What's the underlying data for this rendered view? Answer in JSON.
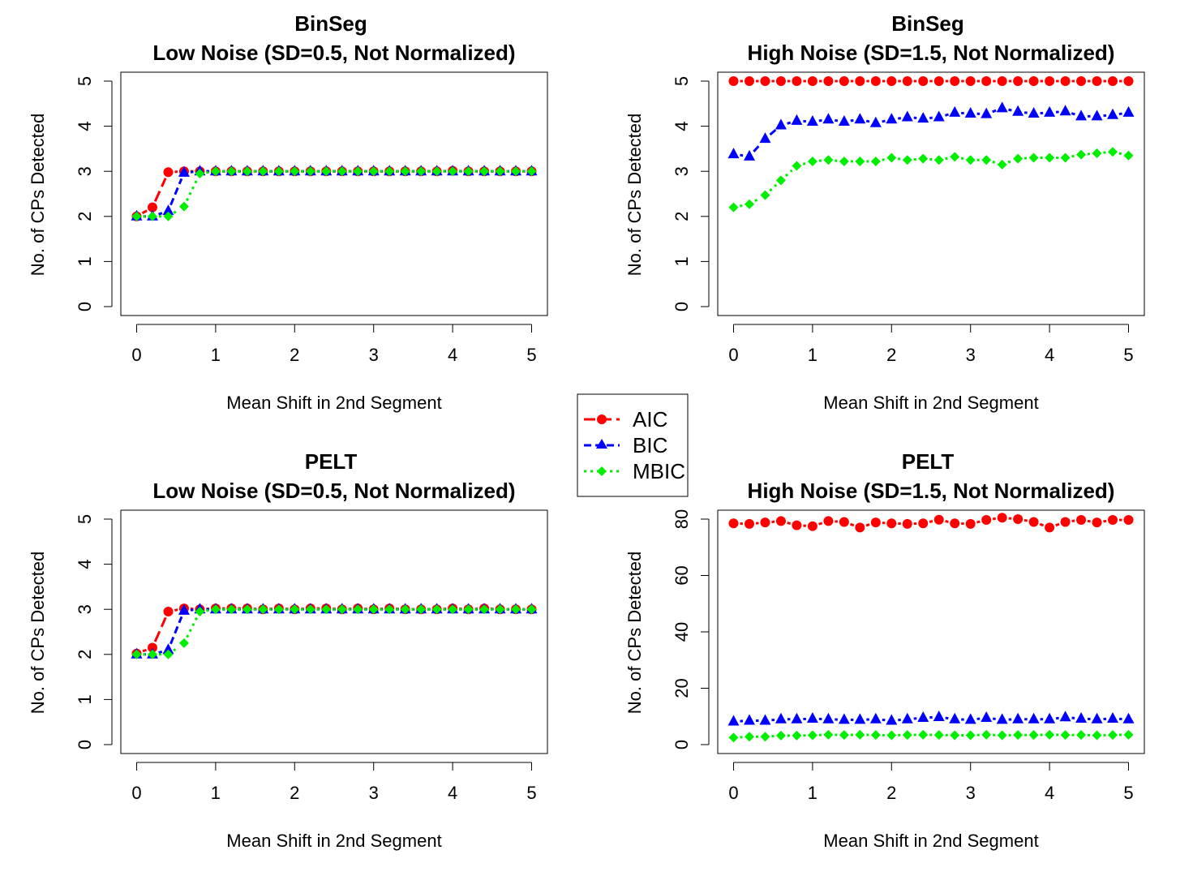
{
  "legend": {
    "entries": [
      {
        "label": "AIC",
        "color": "#ff0000",
        "marker": "circle",
        "dash": "long-dash"
      },
      {
        "label": "BIC",
        "color": "#0000ff",
        "marker": "triangle",
        "dash": "dash"
      },
      {
        "label": "MBIC",
        "color": "#00ee00",
        "marker": "diamond",
        "dash": "dotted"
      }
    ]
  },
  "chart_data": [
    {
      "type": "line",
      "title": "BinSeg",
      "subtitle": "Low Noise (SD=0.5, Not Normalized)",
      "xlabel": "Mean Shift in 2nd Segment",
      "ylabel": "No. of CPs Detected",
      "xlim": [
        0,
        5
      ],
      "ylim": [
        0,
        5
      ],
      "xticks": [
        0,
        1,
        2,
        3,
        4,
        5
      ],
      "yticks": [
        0,
        1,
        2,
        3,
        4,
        5
      ],
      "x": [
        0,
        0.2,
        0.4,
        0.6,
        0.8,
        1.0,
        1.2,
        1.4,
        1.6,
        1.8,
        2.0,
        2.2,
        2.4,
        2.6,
        2.8,
        3.0,
        3.2,
        3.4,
        3.6,
        3.8,
        4.0,
        4.2,
        4.4,
        4.6,
        4.8,
        5.0
      ],
      "series": [
        {
          "name": "AIC",
          "values": [
            2.0,
            2.2,
            2.98,
            3.0,
            3.0,
            3.0,
            3.0,
            3.0,
            3.0,
            3.0,
            3.0,
            3.0,
            3.0,
            3.0,
            3.0,
            3.0,
            3.0,
            3.0,
            3.0,
            3.0,
            3.01,
            3.0,
            3.0,
            3.0,
            3.0,
            3.0
          ]
        },
        {
          "name": "BIC",
          "values": [
            2.0,
            2.0,
            2.12,
            2.97,
            3.0,
            3.0,
            3.0,
            3.0,
            3.0,
            3.0,
            3.0,
            3.0,
            3.0,
            3.0,
            3.0,
            3.0,
            3.0,
            3.0,
            3.0,
            3.0,
            3.0,
            3.0,
            3.0,
            3.0,
            3.0,
            3.0
          ]
        },
        {
          "name": "MBIC",
          "values": [
            2.0,
            2.0,
            2.0,
            2.22,
            2.95,
            3.0,
            3.0,
            3.0,
            3.0,
            3.0,
            3.0,
            3.0,
            3.0,
            3.0,
            3.0,
            3.0,
            3.0,
            3.0,
            3.0,
            3.0,
            3.0,
            3.0,
            3.0,
            3.0,
            3.0,
            3.0
          ]
        }
      ]
    },
    {
      "type": "line",
      "title": "BinSeg",
      "subtitle": "High Noise (SD=1.5, Not Normalized)",
      "xlabel": "Mean Shift in 2nd Segment",
      "ylabel": "No. of CPs Detected",
      "xlim": [
        0,
        5
      ],
      "ylim": [
        0,
        5
      ],
      "xticks": [
        0,
        1,
        2,
        3,
        4,
        5
      ],
      "yticks": [
        0,
        1,
        2,
        3,
        4,
        5
      ],
      "x": [
        0,
        0.2,
        0.4,
        0.6,
        0.8,
        1.0,
        1.2,
        1.4,
        1.6,
        1.8,
        2.0,
        2.2,
        2.4,
        2.6,
        2.8,
        3.0,
        3.2,
        3.4,
        3.6,
        3.8,
        4.0,
        4.2,
        4.4,
        4.6,
        4.8,
        5.0
      ],
      "series": [
        {
          "name": "AIC",
          "values": [
            5.0,
            5.0,
            5.0,
            5.0,
            5.0,
            5.0,
            5.0,
            5.0,
            5.0,
            5.0,
            5.0,
            5.0,
            5.0,
            5.0,
            5.0,
            5.0,
            5.0,
            5.0,
            5.0,
            5.0,
            5.0,
            5.0,
            5.0,
            5.0,
            5.0,
            5.0
          ]
        },
        {
          "name": "BIC",
          "values": [
            3.38,
            3.33,
            3.72,
            4.02,
            4.12,
            4.1,
            4.15,
            4.1,
            4.15,
            4.07,
            4.15,
            4.2,
            4.17,
            4.2,
            4.3,
            4.28,
            4.27,
            4.4,
            4.32,
            4.28,
            4.3,
            4.33,
            4.22,
            4.22,
            4.25,
            4.3
          ]
        },
        {
          "name": "MBIC",
          "values": [
            2.2,
            2.27,
            2.47,
            2.8,
            3.12,
            3.22,
            3.25,
            3.22,
            3.22,
            3.22,
            3.3,
            3.25,
            3.28,
            3.25,
            3.32,
            3.25,
            3.25,
            3.15,
            3.28,
            3.3,
            3.3,
            3.3,
            3.37,
            3.4,
            3.43,
            3.35
          ]
        }
      ]
    },
    {
      "type": "line",
      "title": "PELT",
      "subtitle": "Low Noise (SD=0.5, Not Normalized)",
      "xlabel": "Mean Shift in 2nd Segment",
      "ylabel": "No. of CPs Detected",
      "xlim": [
        0,
        5
      ],
      "ylim": [
        0,
        5
      ],
      "xticks": [
        0,
        1,
        2,
        3,
        4,
        5
      ],
      "yticks": [
        0,
        1,
        2,
        3,
        4,
        5
      ],
      "x": [
        0,
        0.2,
        0.4,
        0.6,
        0.8,
        1.0,
        1.2,
        1.4,
        1.6,
        1.8,
        2.0,
        2.2,
        2.4,
        2.6,
        2.8,
        3.0,
        3.2,
        3.4,
        3.6,
        3.8,
        4.0,
        4.2,
        4.4,
        4.6,
        4.8,
        5.0
      ],
      "series": [
        {
          "name": "AIC",
          "values": [
            2.02,
            2.15,
            2.95,
            3.02,
            3.0,
            3.02,
            3.02,
            3.02,
            3.0,
            3.02,
            3.0,
            3.02,
            3.02,
            3.0,
            3.02,
            3.0,
            3.02,
            3.0,
            3.0,
            3.0,
            3.02,
            3.0,
            3.02,
            3.0,
            3.0,
            3.0
          ]
        },
        {
          "name": "BIC",
          "values": [
            2.0,
            2.0,
            2.1,
            2.97,
            3.0,
            3.0,
            3.0,
            3.0,
            3.0,
            3.0,
            3.0,
            3.0,
            3.0,
            3.0,
            3.0,
            3.0,
            3.0,
            3.0,
            3.0,
            3.0,
            3.0,
            3.0,
            3.0,
            3.0,
            3.0,
            3.0
          ]
        },
        {
          "name": "MBIC",
          "values": [
            2.0,
            2.0,
            2.0,
            2.25,
            2.95,
            3.0,
            3.0,
            3.0,
            3.0,
            3.0,
            3.0,
            3.0,
            3.0,
            3.0,
            3.0,
            3.0,
            3.0,
            3.0,
            3.0,
            3.0,
            3.0,
            3.0,
            3.0,
            3.0,
            3.0,
            3.0
          ]
        }
      ]
    },
    {
      "type": "line",
      "title": "PELT",
      "subtitle": "High Noise (SD=1.5, Not Normalized)",
      "xlabel": "Mean Shift in 2nd Segment",
      "ylabel": "No. of CPs Detected",
      "xlim": [
        0,
        5
      ],
      "ylim": [
        0,
        80
      ],
      "xticks": [
        0,
        1,
        2,
        3,
        4,
        5
      ],
      "yticks": [
        0,
        20,
        40,
        60,
        80
      ],
      "x": [
        0,
        0.2,
        0.4,
        0.6,
        0.8,
        1.0,
        1.2,
        1.4,
        1.6,
        1.8,
        2.0,
        2.2,
        2.4,
        2.6,
        2.8,
        3.0,
        3.2,
        3.4,
        3.6,
        3.8,
        4.0,
        4.2,
        4.4,
        4.6,
        4.8,
        5.0
      ],
      "series": [
        {
          "name": "AIC",
          "values": [
            78.5,
            78.3,
            78.8,
            79.3,
            77.8,
            77.5,
            79.3,
            79.0,
            77.0,
            78.8,
            78.5,
            78.3,
            78.5,
            79.8,
            78.5,
            78.3,
            79.7,
            80.5,
            80.0,
            79.0,
            77.0,
            79.0,
            79.7,
            78.8,
            79.7,
            79.7
          ]
        },
        {
          "name": "BIC",
          "values": [
            8.2,
            8.5,
            8.5,
            9.0,
            9.0,
            9.2,
            9.0,
            8.8,
            8.8,
            9.0,
            8.5,
            9.0,
            9.5,
            9.8,
            9.0,
            8.8,
            9.5,
            8.8,
            9.0,
            9.0,
            9.0,
            9.7,
            9.2,
            9.0,
            9.2,
            9.0
          ]
        },
        {
          "name": "MBIC",
          "values": [
            2.5,
            2.8,
            2.8,
            3.2,
            3.2,
            3.3,
            3.5,
            3.4,
            3.5,
            3.4,
            3.3,
            3.4,
            3.5,
            3.4,
            3.3,
            3.3,
            3.5,
            3.3,
            3.4,
            3.4,
            3.5,
            3.4,
            3.4,
            3.3,
            3.4,
            3.5
          ]
        }
      ]
    }
  ]
}
